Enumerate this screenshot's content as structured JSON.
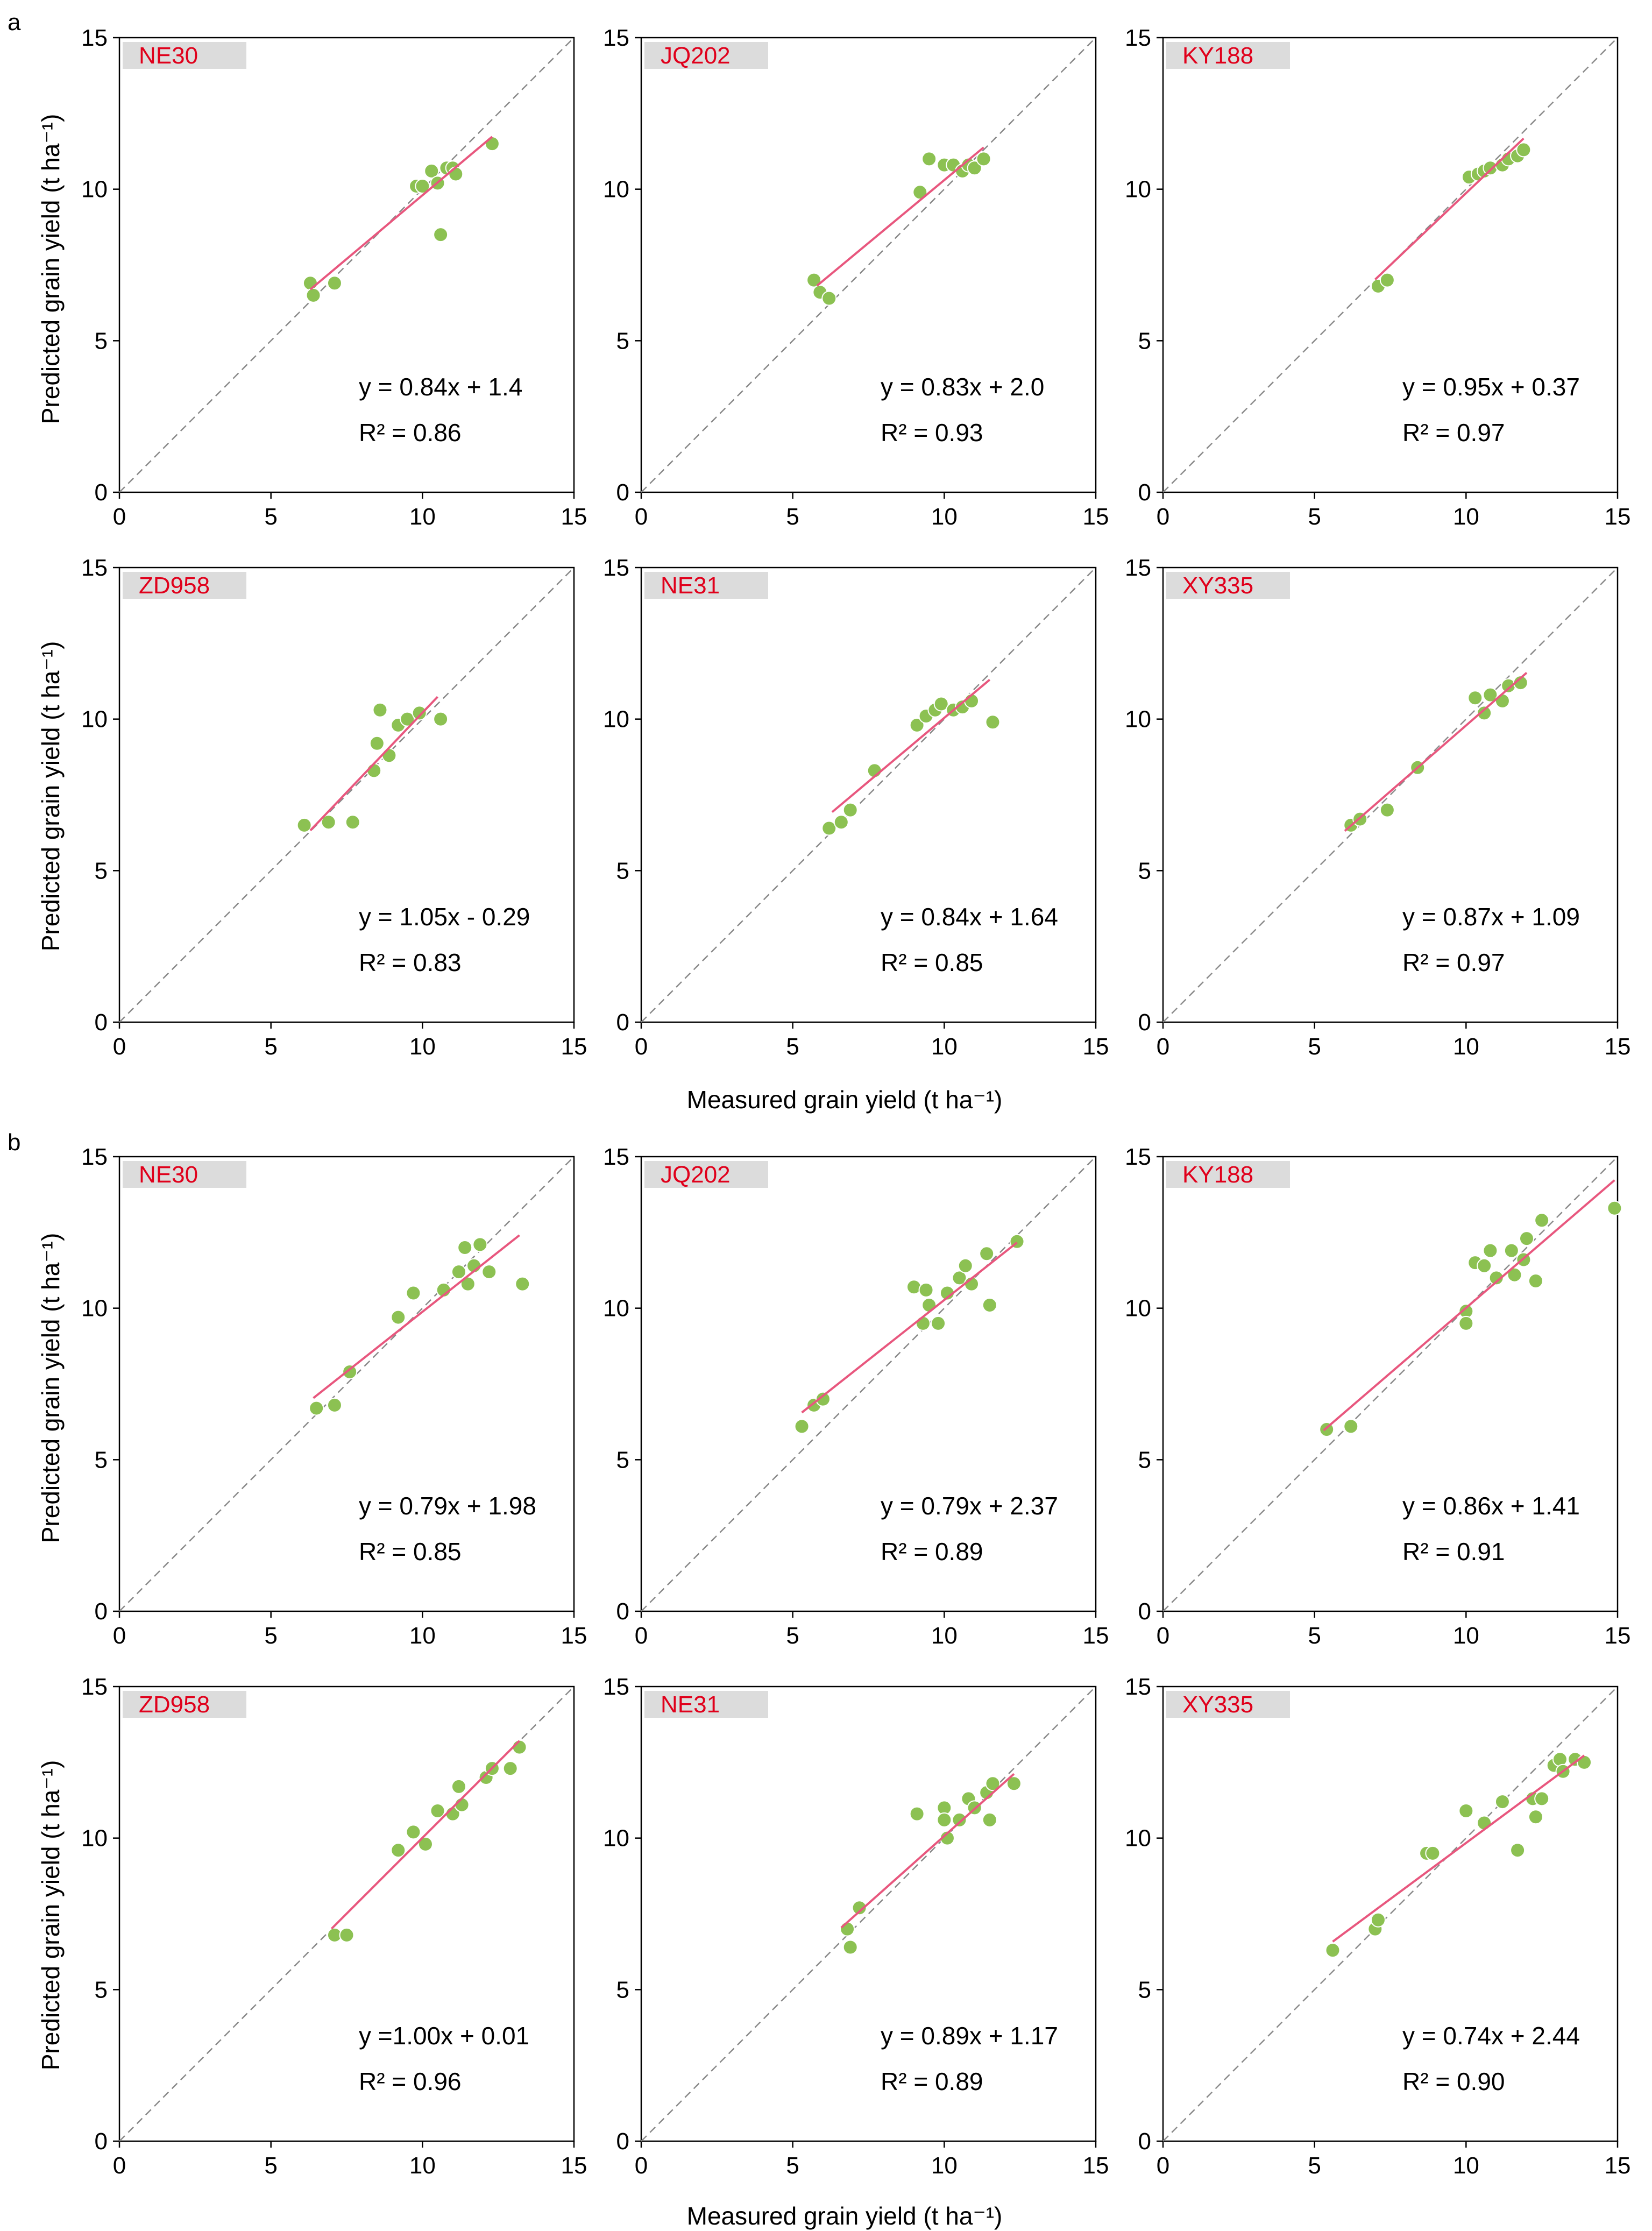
{
  "figure": {
    "axis_label_x": "Measured grain yield (t ha⁻¹)",
    "axis_label_y": "Predicted grain yield (t ha⁻¹)",
    "colors": {
      "points": "#8cc152",
      "fit_line": "#e8577e",
      "identity_line": "#8a8a8a",
      "label_bg": "#dcdcdc",
      "label_text": "#e0001b"
    }
  },
  "panels": [
    {
      "letter": "a"
    },
    {
      "letter": "b"
    }
  ],
  "chart_data": [
    {
      "type": "scatter",
      "panel": "a",
      "title": "NE30",
      "xlabel": "Measured grain yield (t ha⁻¹)",
      "ylabel": "Predicted grain yield (t ha⁻¹)",
      "xlim": [
        0,
        15
      ],
      "ylim": [
        0,
        15
      ],
      "ticks": [
        0,
        5,
        10,
        15
      ],
      "equation": "y = 0.84x + 1.4",
      "r2": "R² = 0.86",
      "slope": 0.84,
      "intercept": 1.4,
      "fit_x": [
        6.3,
        12.3
      ],
      "points": [
        [
          6.3,
          6.9
        ],
        [
          6.4,
          6.5
        ],
        [
          7.1,
          6.9
        ],
        [
          9.8,
          10.1
        ],
        [
          10.0,
          10.1
        ],
        [
          10.3,
          10.6
        ],
        [
          10.5,
          10.2
        ],
        [
          10.6,
          8.5
        ],
        [
          10.8,
          10.7
        ],
        [
          11.0,
          10.7
        ],
        [
          11.1,
          10.5
        ],
        [
          12.3,
          11.5
        ]
      ]
    },
    {
      "type": "scatter",
      "panel": "a",
      "title": "JQ202",
      "xlabel": "Measured grain yield (t ha⁻¹)",
      "ylabel": "Predicted grain yield (t ha⁻¹)",
      "xlim": [
        0,
        15
      ],
      "ylim": [
        0,
        15
      ],
      "ticks": [
        0,
        5,
        10,
        15
      ],
      "equation": "y = 0.83x + 2.0",
      "r2": "R² = 0.93",
      "slope": 0.83,
      "intercept": 2.0,
      "fit_x": [
        5.8,
        11.3
      ],
      "points": [
        [
          5.7,
          7.0
        ],
        [
          5.9,
          6.6
        ],
        [
          6.2,
          6.4
        ],
        [
          9.2,
          9.9
        ],
        [
          9.5,
          11.0
        ],
        [
          10.0,
          10.8
        ],
        [
          10.3,
          10.8
        ],
        [
          10.6,
          10.6
        ],
        [
          10.8,
          10.8
        ],
        [
          11.0,
          10.7
        ],
        [
          11.3,
          11.0
        ]
      ]
    },
    {
      "type": "scatter",
      "panel": "a",
      "title": "KY188",
      "xlabel": "Measured grain yield (t ha⁻¹)",
      "ylabel": "Predicted grain yield (t ha⁻¹)",
      "xlim": [
        0,
        15
      ],
      "ylim": [
        0,
        15
      ],
      "ticks": [
        0,
        5,
        10,
        15
      ],
      "equation": "y = 0.95x + 0.37",
      "r2": "R² = 0.97",
      "slope": 0.95,
      "intercept": 0.37,
      "fit_x": [
        7.0,
        11.9
      ],
      "points": [
        [
          7.1,
          6.8
        ],
        [
          7.4,
          7.0
        ],
        [
          10.1,
          10.4
        ],
        [
          10.4,
          10.5
        ],
        [
          10.6,
          10.6
        ],
        [
          10.8,
          10.7
        ],
        [
          11.2,
          10.8
        ],
        [
          11.4,
          11.0
        ],
        [
          11.7,
          11.1
        ],
        [
          11.9,
          11.3
        ]
      ]
    },
    {
      "type": "scatter",
      "panel": "a",
      "title": "ZD958",
      "xlabel": "Measured grain yield (t ha⁻¹)",
      "ylabel": "Predicted grain yield (t ha⁻¹)",
      "xlim": [
        0,
        15
      ],
      "ylim": [
        0,
        15
      ],
      "ticks": [
        0,
        5,
        10,
        15
      ],
      "equation": "y = 1.05x - 0.29",
      "r2": "R² = 0.83",
      "slope": 1.05,
      "intercept": -0.29,
      "fit_x": [
        6.3,
        10.5
      ],
      "points": [
        [
          6.1,
          6.5
        ],
        [
          6.9,
          6.6
        ],
        [
          7.7,
          6.6
        ],
        [
          8.4,
          8.3
        ],
        [
          8.5,
          9.2
        ],
        [
          8.6,
          10.3
        ],
        [
          8.9,
          8.8
        ],
        [
          9.2,
          9.8
        ],
        [
          9.5,
          10.0
        ],
        [
          9.9,
          10.2
        ],
        [
          10.6,
          10.0
        ]
      ]
    },
    {
      "type": "scatter",
      "panel": "a",
      "title": "NE31",
      "xlabel": "Measured grain yield (t ha⁻¹)",
      "ylabel": "Predicted grain yield (t ha⁻¹)",
      "xlim": [
        0,
        15
      ],
      "ylim": [
        0,
        15
      ],
      "ticks": [
        0,
        5,
        10,
        15
      ],
      "equation": "y = 0.84x + 1.64",
      "r2": "R² = 0.85",
      "slope": 0.84,
      "intercept": 1.64,
      "fit_x": [
        6.3,
        11.5
      ],
      "points": [
        [
          6.2,
          6.4
        ],
        [
          6.6,
          6.6
        ],
        [
          6.9,
          7.0
        ],
        [
          7.7,
          8.3
        ],
        [
          9.1,
          9.8
        ],
        [
          9.4,
          10.1
        ],
        [
          9.7,
          10.3
        ],
        [
          9.9,
          10.5
        ],
        [
          10.3,
          10.3
        ],
        [
          10.6,
          10.4
        ],
        [
          10.9,
          10.6
        ],
        [
          11.6,
          9.9
        ]
      ]
    },
    {
      "type": "scatter",
      "panel": "a",
      "title": "XY335",
      "xlabel": "Measured grain yield (t ha⁻¹)",
      "ylabel": "Predicted grain yield (t ha⁻¹)",
      "xlim": [
        0,
        15
      ],
      "ylim": [
        0,
        15
      ],
      "ticks": [
        0,
        5,
        10,
        15
      ],
      "equation": "y = 0.87x + 1.09",
      "r2": "R² = 0.97",
      "slope": 0.87,
      "intercept": 1.09,
      "fit_x": [
        6.0,
        12.0
      ],
      "points": [
        [
          6.2,
          6.5
        ],
        [
          6.5,
          6.7
        ],
        [
          7.4,
          7.0
        ],
        [
          8.4,
          8.4
        ],
        [
          10.3,
          10.7
        ],
        [
          10.6,
          10.2
        ],
        [
          10.8,
          10.8
        ],
        [
          11.2,
          10.6
        ],
        [
          11.4,
          11.1
        ],
        [
          11.8,
          11.2
        ]
      ]
    },
    {
      "type": "scatter",
      "panel": "b",
      "title": "NE30",
      "xlabel": "Measured grain yield (t ha⁻¹)",
      "ylabel": "Predicted grain yield (t ha⁻¹)",
      "xlim": [
        0,
        15
      ],
      "ylim": [
        0,
        15
      ],
      "ticks": [
        0,
        5,
        10,
        15
      ],
      "equation": "y = 0.79x + 1.98",
      "r2": "R² = 0.85",
      "slope": 0.79,
      "intercept": 1.98,
      "fit_x": [
        6.4,
        13.2
      ],
      "points": [
        [
          6.5,
          6.7
        ],
        [
          7.1,
          6.8
        ],
        [
          7.6,
          7.9
        ],
        [
          9.2,
          9.7
        ],
        [
          9.7,
          10.5
        ],
        [
          10.7,
          10.6
        ],
        [
          11.2,
          11.2
        ],
        [
          11.4,
          12.0
        ],
        [
          11.5,
          10.8
        ],
        [
          11.7,
          11.4
        ],
        [
          11.9,
          12.1
        ],
        [
          12.2,
          11.2
        ],
        [
          13.3,
          10.8
        ]
      ]
    },
    {
      "type": "scatter",
      "panel": "b",
      "title": "JQ202",
      "xlabel": "Measured grain yield (t ha⁻¹)",
      "ylabel": "Predicted grain yield (t ha⁻¹)",
      "xlim": [
        0,
        15
      ],
      "ylim": [
        0,
        15
      ],
      "ticks": [
        0,
        5,
        10,
        15
      ],
      "equation": "y = 0.79x + 2.37",
      "r2": "R² = 0.89",
      "slope": 0.79,
      "intercept": 2.37,
      "fit_x": [
        5.3,
        12.4
      ],
      "points": [
        [
          5.3,
          6.1
        ],
        [
          5.7,
          6.8
        ],
        [
          6.0,
          7.0
        ],
        [
          9.0,
          10.7
        ],
        [
          9.3,
          9.5
        ],
        [
          9.4,
          10.6
        ],
        [
          9.5,
          10.1
        ],
        [
          9.8,
          9.5
        ],
        [
          10.1,
          10.5
        ],
        [
          10.5,
          11.0
        ],
        [
          10.7,
          11.4
        ],
        [
          10.9,
          10.8
        ],
        [
          11.4,
          11.8
        ],
        [
          11.5,
          10.1
        ],
        [
          12.4,
          12.2
        ]
      ]
    },
    {
      "type": "scatter",
      "panel": "b",
      "title": "KY188",
      "xlabel": "Measured grain yield (t ha⁻¹)",
      "ylabel": "Predicted grain yield (t ha⁻¹)",
      "xlim": [
        0,
        15
      ],
      "ylim": [
        0,
        15
      ],
      "ticks": [
        0,
        5,
        10,
        15
      ],
      "equation": "y = 0.86x + 1.41",
      "r2": "R² = 0.91",
      "slope": 0.86,
      "intercept": 1.41,
      "fit_x": [
        5.3,
        14.9
      ],
      "points": [
        [
          5.4,
          6.0
        ],
        [
          6.2,
          6.1
        ],
        [
          10.0,
          9.9
        ],
        [
          10.0,
          9.5
        ],
        [
          10.3,
          11.5
        ],
        [
          10.6,
          11.4
        ],
        [
          10.8,
          11.9
        ],
        [
          11.0,
          11.0
        ],
        [
          11.5,
          11.9
        ],
        [
          11.6,
          11.1
        ],
        [
          11.9,
          11.6
        ],
        [
          12.0,
          12.3
        ],
        [
          12.3,
          10.9
        ],
        [
          12.5,
          12.9
        ],
        [
          14.9,
          13.3
        ]
      ]
    },
    {
      "type": "scatter",
      "panel": "b",
      "title": "ZD958",
      "xlabel": "Measured grain yield (t ha⁻¹)",
      "ylabel": "Predicted grain yield (t ha⁻¹)",
      "xlim": [
        0,
        15
      ],
      "ylim": [
        0,
        15
      ],
      "ticks": [
        0,
        5,
        10,
        15
      ],
      "equation": "y =1.00x + 0.01",
      "r2": "R² = 0.96",
      "slope": 1.0,
      "intercept": 0.01,
      "fit_x": [
        7.0,
        13.2
      ],
      "points": [
        [
          7.1,
          6.8
        ],
        [
          7.5,
          6.8
        ],
        [
          9.2,
          9.6
        ],
        [
          9.7,
          10.2
        ],
        [
          10.1,
          9.8
        ],
        [
          10.5,
          10.9
        ],
        [
          11.0,
          10.8
        ],
        [
          11.2,
          11.7
        ],
        [
          11.3,
          11.1
        ],
        [
          12.1,
          12.0
        ],
        [
          12.3,
          12.3
        ],
        [
          12.9,
          12.3
        ],
        [
          13.2,
          13.0
        ]
      ]
    },
    {
      "type": "scatter",
      "panel": "b",
      "title": "NE31",
      "xlabel": "Measured grain yield (t ha⁻¹)",
      "ylabel": "Predicted grain yield (t ha⁻¹)",
      "xlim": [
        0,
        15
      ],
      "ylim": [
        0,
        15
      ],
      "ticks": [
        0,
        5,
        10,
        15
      ],
      "equation": "y = 0.89x + 1.17",
      "r2": "R² = 0.89",
      "slope": 0.89,
      "intercept": 1.17,
      "fit_x": [
        6.6,
        12.3
      ],
      "points": [
        [
          6.8,
          7.0
        ],
        [
          6.9,
          6.4
        ],
        [
          7.2,
          7.7
        ],
        [
          9.1,
          10.8
        ],
        [
          10.0,
          11.0
        ],
        [
          10.0,
          10.6
        ],
        [
          10.1,
          10.0
        ],
        [
          10.5,
          10.6
        ],
        [
          10.8,
          11.3
        ],
        [
          11.0,
          11.0
        ],
        [
          11.4,
          11.5
        ],
        [
          11.5,
          10.6
        ],
        [
          11.6,
          11.8
        ],
        [
          12.3,
          11.8
        ]
      ]
    },
    {
      "type": "scatter",
      "panel": "b",
      "title": "XY335",
      "xlabel": "Measured grain yield (t ha⁻¹)",
      "ylabel": "Predicted grain yield (t ha⁻¹)",
      "xlim": [
        0,
        15
      ],
      "ylim": [
        0,
        15
      ],
      "ticks": [
        0,
        5,
        10,
        15
      ],
      "equation": "y = 0.74x + 2.44",
      "r2": "R² = 0.90",
      "slope": 0.74,
      "intercept": 2.44,
      "fit_x": [
        5.6,
        13.9
      ],
      "points": [
        [
          5.6,
          6.3
        ],
        [
          7.0,
          7.0
        ],
        [
          7.1,
          7.3
        ],
        [
          8.7,
          9.5
        ],
        [
          8.9,
          9.5
        ],
        [
          10.0,
          10.9
        ],
        [
          10.6,
          10.5
        ],
        [
          11.2,
          11.2
        ],
        [
          11.7,
          9.6
        ],
        [
          12.2,
          11.3
        ],
        [
          12.3,
          10.7
        ],
        [
          12.5,
          11.3
        ],
        [
          12.9,
          12.4
        ],
        [
          13.1,
          12.6
        ],
        [
          13.2,
          12.2
        ],
        [
          13.6,
          12.6
        ],
        [
          13.9,
          12.5
        ]
      ]
    }
  ]
}
